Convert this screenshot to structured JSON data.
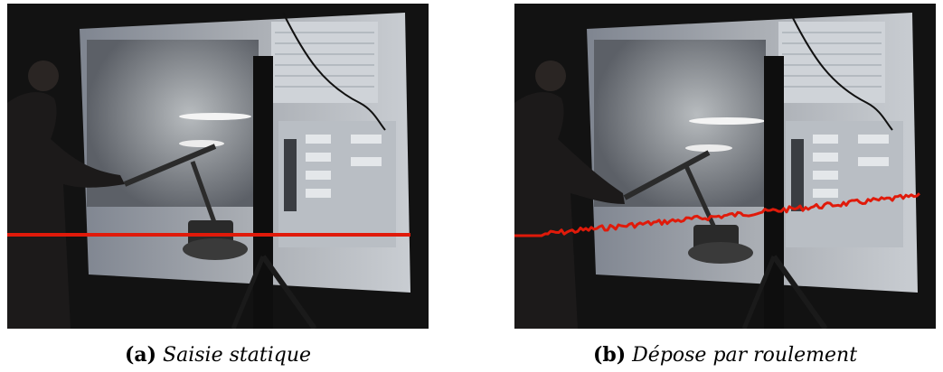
{
  "figures": [
    {
      "letter": "(a)",
      "caption": "Saisie statique",
      "trace_color": "#e01a0a"
    },
    {
      "letter": "(b)",
      "caption": "Dépose par roulement",
      "trace_color": "#e01a0a"
    }
  ]
}
